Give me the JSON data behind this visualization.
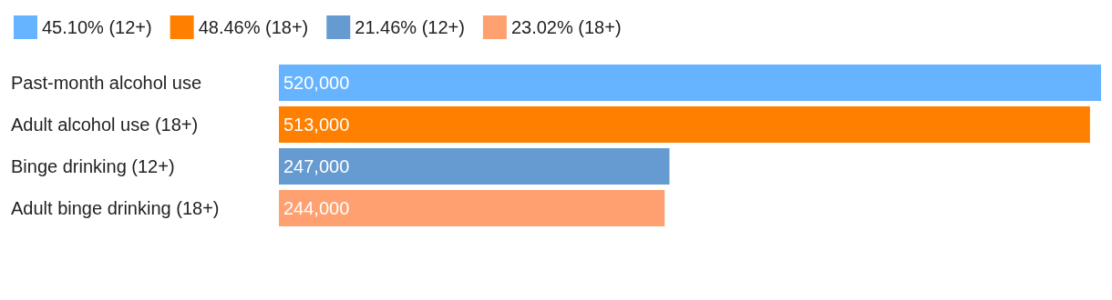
{
  "chart_data": {
    "type": "bar",
    "orientation": "horizontal",
    "stacked": true,
    "legend": "top left",
    "categories": [
      "Past-month alcohol use",
      "Adult alcohol use (18+)",
      "Binge drinking (12+)",
      "Adult binge drinking (18+)"
    ],
    "series": [
      {
        "name": "45.10% (12+)",
        "color": "#66b3ff",
        "values": [
          520000,
          null,
          null,
          null
        ],
        "value_labels": [
          "520,000",
          null,
          null,
          null
        ]
      },
      {
        "name": "48.46% (18+)",
        "color": "#ff7f00",
        "values": [
          null,
          513000,
          null,
          null
        ],
        "value_labels": [
          null,
          "513,000",
          null,
          null
        ]
      },
      {
        "name": "21.46% (12+)",
        "color": "#659bd0",
        "values": [
          null,
          null,
          247000,
          null
        ],
        "value_labels": [
          null,
          null,
          "247,000",
          null
        ]
      },
      {
        "name": "23.02% (18+)",
        "color": "#ffa070",
        "values": [
          null,
          null,
          null,
          244000
        ],
        "value_labels": [
          null,
          null,
          null,
          "244,000"
        ]
      }
    ]
  }
}
